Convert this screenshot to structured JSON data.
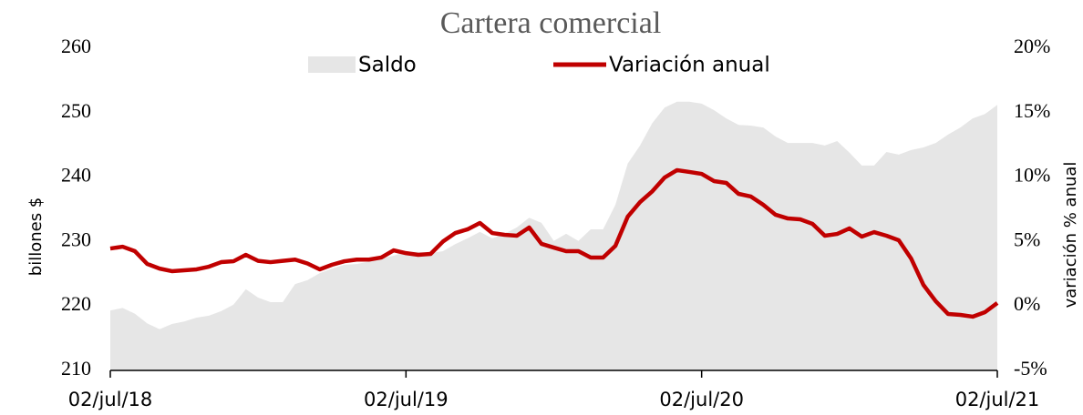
{
  "chart_data": {
    "type": "line-area",
    "title": "Cartera comercial",
    "y_label": "billones $",
    "y2_label": "variación % anual",
    "categories": [
      "02/jul/18",
      null,
      null,
      null,
      null,
      null,
      null,
      null,
      null,
      null,
      null,
      null,
      null,
      null,
      null,
      null,
      null,
      null,
      null,
      null,
      null,
      null,
      null,
      null,
      "02/jul/19",
      null,
      null,
      null,
      null,
      null,
      null,
      null,
      null,
      null,
      null,
      null,
      null,
      null,
      null,
      null,
      null,
      null,
      null,
      null,
      null,
      null,
      null,
      null,
      "02/jul/20",
      null,
      null,
      null,
      null,
      null,
      null,
      null,
      null,
      null,
      null,
      null,
      null,
      null,
      null,
      null,
      null,
      null,
      null,
      null,
      null,
      null,
      null,
      null,
      "02/jul/21"
    ],
    "series": [
      {
        "name": "Saldo",
        "kind": "area",
        "axis": "y",
        "color": "#e6e6e6",
        "values": [
          219.3,
          219.7,
          218.8,
          217.3,
          216.4,
          217.2,
          217.6,
          218.2,
          218.5,
          219.2,
          220.2,
          222.6,
          221.3,
          220.6,
          220.6,
          223.4,
          224.0,
          225.1,
          225.8,
          226.4,
          226.5,
          226.9,
          227.4,
          227.8,
          228.4,
          228.4,
          228.2,
          228.5,
          229.6,
          230.5,
          231.5,
          230.5,
          231.2,
          232.2,
          233.7,
          232.9,
          230.1,
          231.2,
          230.1,
          231.9,
          231.9,
          235.7,
          242.1,
          244.9,
          248.4,
          250.8,
          251.7,
          251.7,
          251.4,
          250.4,
          249.1,
          248.1,
          248.0,
          247.7,
          246.3,
          245.3,
          245.3,
          245.3,
          244.9,
          245.6,
          243.8,
          241.8,
          241.8,
          243.9,
          243.5,
          244.2,
          244.6,
          245.3,
          246.6,
          247.7,
          249.1,
          249.8,
          251.2
        ]
      },
      {
        "name": "Variación anual",
        "kind": "line",
        "axis": "y2",
        "color": "#c00000",
        "values": [
          4.46,
          4.6,
          4.25,
          3.26,
          2.9,
          2.7,
          2.77,
          2.84,
          3.05,
          3.4,
          3.47,
          3.97,
          3.5,
          3.4,
          3.5,
          3.6,
          3.3,
          2.84,
          3.2,
          3.47,
          3.6,
          3.6,
          3.76,
          4.32,
          4.1,
          3.97,
          4.04,
          5.0,
          5.66,
          5.95,
          6.44,
          5.66,
          5.52,
          5.45,
          6.09,
          4.82,
          4.53,
          4.25,
          4.25,
          3.76,
          3.76,
          4.67,
          6.93,
          8.06,
          8.9,
          9.97,
          10.54,
          10.4,
          10.25,
          9.69,
          9.55,
          8.7,
          8.49,
          7.85,
          7.08,
          6.79,
          6.72,
          6.37,
          5.45,
          5.59,
          6.02,
          5.38,
          5.73,
          5.45,
          5.1,
          3.69,
          1.64,
          0.37,
          -0.62,
          -0.69,
          -0.83,
          -0.48,
          0.23
        ]
      }
    ],
    "ylim": [
      210,
      260
    ],
    "yticks": [
      210,
      220,
      230,
      240,
      250,
      260
    ],
    "y2lim": [
      -5,
      20
    ],
    "y2ticks": [
      {
        "value": -5,
        "label": "-5%"
      },
      {
        "value": 0,
        "label": "0%"
      },
      {
        "value": 5,
        "label": "5%"
      },
      {
        "value": 10,
        "label": "10%"
      },
      {
        "value": 15,
        "label": "15%"
      },
      {
        "value": 20,
        "label": "20%"
      }
    ],
    "legend": "top",
    "grid": false
  }
}
